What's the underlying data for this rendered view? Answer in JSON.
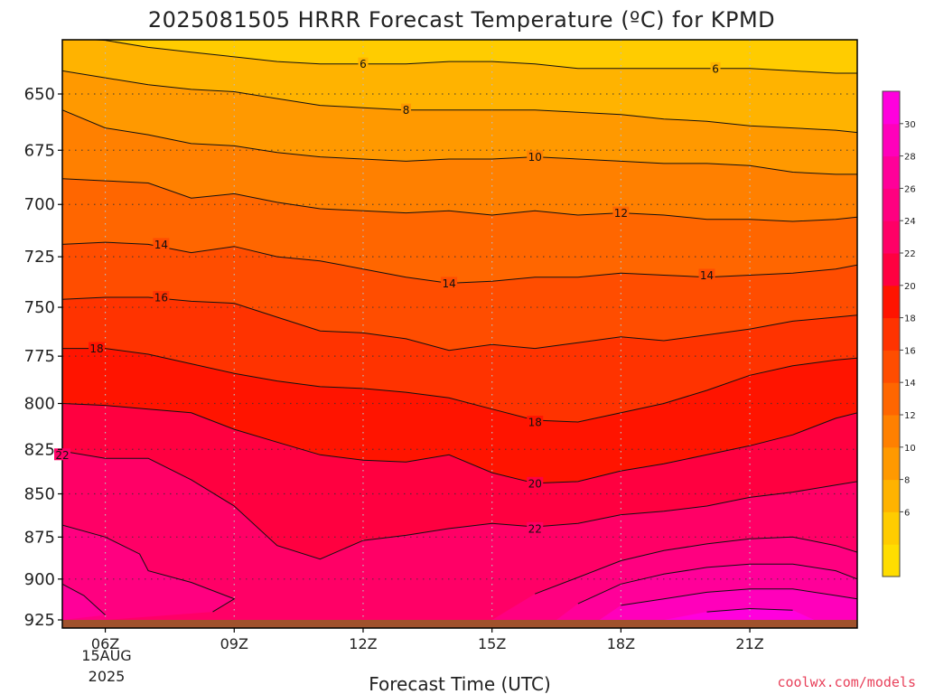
{
  "chart_data": {
    "type": "heatmap",
    "title": "2025081505 HRRR Forecast Temperature (ºC) for KPMD",
    "xlabel": "Forecast Time (UTC)",
    "ylabel": "",
    "credit": "coolwx.com/models",
    "x_range": [
      5,
      23.5
    ],
    "y_range": [
      925,
      627
    ],
    "pressure_levels": [
      650,
      675,
      700,
      725,
      750,
      775,
      800,
      825,
      850,
      875,
      900,
      925
    ],
    "y_tick_labels": [
      "650",
      "675",
      "700",
      "725",
      "750",
      "775",
      "800",
      "825",
      "850",
      "875",
      "900",
      "925"
    ],
    "x_ticks": [
      6,
      9,
      12,
      15,
      18,
      21
    ],
    "x_tick_labels": [
      "06Z",
      "09Z",
      "12Z",
      "15Z",
      "18Z",
      "21Z"
    ],
    "x_date_label": [
      "15AUG",
      "2025"
    ],
    "ground_level_hpa": 925,
    "ground_color": "#a0522d",
    "colorbar": {
      "levels": [
        2,
        4,
        6,
        8,
        10,
        12,
        14,
        16,
        18,
        20,
        22,
        24,
        26,
        28,
        30,
        32
      ],
      "tick_labels": [
        "6",
        "8",
        "10",
        "12",
        "14",
        "16",
        "18",
        "20",
        "22",
        "24",
        "26",
        "28",
        "30"
      ],
      "colors": [
        "#ffdd00",
        "#ffcc00",
        "#ffb300",
        "#ff9900",
        "#ff8000",
        "#ff6600",
        "#ff4d00",
        "#ff3300",
        "#ff1400",
        "#ff0040",
        "#ff0066",
        "#ff0080",
        "#ff0099",
        "#ff00bb",
        "#ff00dd"
      ]
    },
    "times": [
      5,
      6,
      7,
      8,
      9,
      10,
      11,
      12,
      13,
      14,
      15,
      16,
      17,
      18,
      19,
      20,
      21,
      22,
      23,
      23.5
    ],
    "isotherms": [
      {
        "value": 6,
        "label": "6",
        "label_points": [
          {
            "x": 12,
            "y": 637
          },
          {
            "x": 20.2,
            "y": 639
          }
        ],
        "p": [
          626,
          627,
          630,
          632,
          634,
          636,
          637,
          637,
          637,
          636,
          636,
          637,
          639,
          639,
          639,
          639,
          639,
          640,
          641,
          641
        ]
      },
      {
        "value": 8,
        "label": "8",
        "label_points": [
          {
            "x": 13,
            "y": 657
          }
        ],
        "p": [
          640,
          643,
          646,
          648,
          649,
          652,
          655,
          656,
          657,
          657,
          657,
          657,
          658,
          659,
          661,
          662,
          664,
          665,
          666,
          667
        ]
      },
      {
        "value": 10,
        "label": "10",
        "label_points": [
          {
            "x": 16,
            "y": 678
          }
        ],
        "p": [
          657,
          665,
          668,
          672,
          673,
          676,
          678,
          679,
          680,
          679,
          679,
          678,
          679,
          680,
          681,
          681,
          682,
          685,
          686,
          686
        ]
      },
      {
        "value": 12,
        "label": "12",
        "label_points": [
          {
            "x": 18,
            "y": 704
          }
        ],
        "p": [
          688,
          689,
          690,
          697,
          695,
          699,
          702,
          703,
          704,
          703,
          705,
          703,
          705,
          704,
          705,
          707,
          707,
          708,
          707,
          706
        ]
      },
      {
        "value": 14,
        "label": "14",
        "label_points": [
          {
            "x": 7.3,
            "y": 719
          },
          {
            "x": 14,
            "y": 738
          },
          {
            "x": 20,
            "y": 734
          }
        ],
        "p": [
          719,
          718,
          719,
          723,
          720,
          725,
          727,
          731,
          735,
          738,
          737,
          735,
          735,
          733,
          734,
          735,
          734,
          733,
          731,
          729
        ]
      },
      {
        "value": 16,
        "label": "16",
        "label_points": [
          {
            "x": 7.3,
            "y": 745
          }
        ],
        "p": [
          746,
          745,
          745,
          747,
          748,
          755,
          762,
          763,
          766,
          772,
          769,
          771,
          768,
          765,
          767,
          764,
          761,
          757,
          755,
          754
        ]
      },
      {
        "value": 18,
        "label": "18",
        "label_points": [
          {
            "x": 5.8,
            "y": 771
          },
          {
            "x": 16,
            "y": 810
          }
        ],
        "p": [
          771,
          771,
          774,
          779,
          784,
          788,
          791,
          792,
          794,
          797,
          803,
          809,
          810,
          805,
          800,
          793,
          785,
          780,
          777,
          776
        ]
      },
      {
        "value": 20,
        "label": "20",
        "label_points": [
          {
            "x": 16,
            "y": 844
          }
        ],
        "p": [
          800,
          801,
          803,
          805,
          814,
          821,
          828,
          831,
          832,
          828,
          838,
          844,
          843,
          837,
          833,
          828,
          823,
          817,
          808,
          805
        ]
      },
      {
        "value": 22,
        "label": "22",
        "label_points": [
          {
            "x": 5,
            "y": 828
          },
          {
            "x": 16,
            "y": 870
          }
        ],
        "p": [
          826,
          830,
          830,
          842,
          857,
          880,
          888,
          877,
          874,
          870,
          867,
          869,
          867,
          862,
          860,
          857,
          852,
          849,
          845,
          843
        ]
      }
    ],
    "warm_pockets": [
      {
        "value": 24,
        "outline": [
          [
            5.0,
            868
          ],
          [
            6.0,
            875
          ],
          [
            6.8,
            885
          ],
          [
            7.0,
            895
          ],
          [
            8.0,
            902
          ],
          [
            9.0,
            912
          ],
          [
            8.5,
            920
          ],
          [
            6.0,
            925
          ],
          [
            5.0,
            925
          ]
        ]
      },
      {
        "value": 26,
        "outline": [
          [
            5.0,
            903
          ],
          [
            5.5,
            910
          ],
          [
            6.0,
            922
          ],
          [
            5.0,
            925
          ]
        ]
      },
      {
        "value": 24,
        "outline": [
          [
            15.0,
            925
          ],
          [
            16.0,
            909
          ],
          [
            17.0,
            899
          ],
          [
            18.0,
            889
          ],
          [
            19.0,
            883
          ],
          [
            20.0,
            879
          ],
          [
            21.0,
            876
          ],
          [
            22.0,
            875
          ],
          [
            23.0,
            880
          ],
          [
            23.5,
            884
          ],
          [
            23.5,
            925
          ]
        ]
      },
      {
        "value": 26,
        "outline": [
          [
            16.5,
            925
          ],
          [
            17.0,
            915
          ],
          [
            18.0,
            903
          ],
          [
            19.0,
            897
          ],
          [
            20.0,
            893
          ],
          [
            21.0,
            891
          ],
          [
            22.0,
            891
          ],
          [
            23.0,
            895
          ],
          [
            23.5,
            900
          ],
          [
            23.5,
            925
          ]
        ]
      },
      {
        "value": 28,
        "outline": [
          [
            17.5,
            925
          ],
          [
            18.0,
            916
          ],
          [
            19.0,
            912
          ],
          [
            20.0,
            908
          ],
          [
            21.0,
            906
          ],
          [
            22.0,
            906
          ],
          [
            23.0,
            910
          ],
          [
            23.5,
            912
          ],
          [
            23.5,
            925
          ]
        ]
      },
      {
        "value": 30,
        "outline": [
          [
            19.0,
            925
          ],
          [
            20.0,
            920
          ],
          [
            21.0,
            918
          ],
          [
            22.0,
            919
          ],
          [
            22.5,
            925
          ]
        ]
      }
    ]
  }
}
